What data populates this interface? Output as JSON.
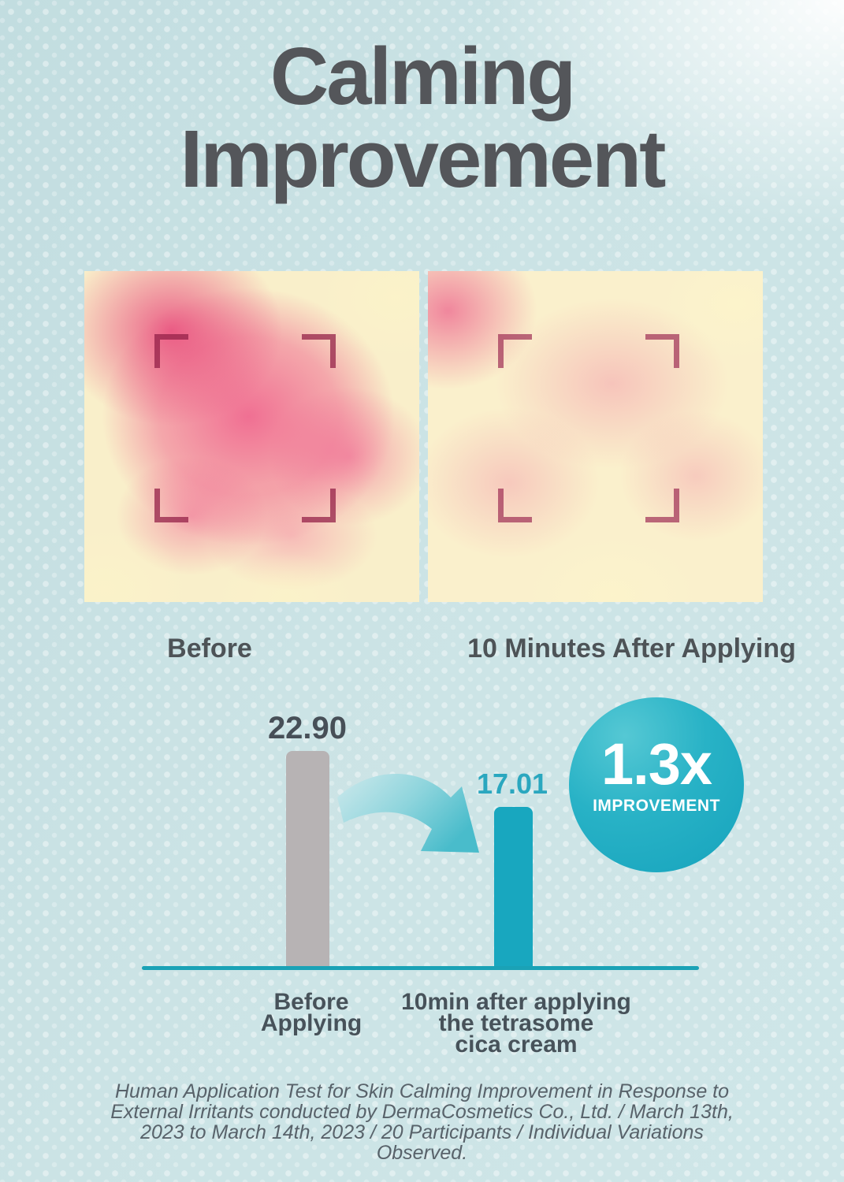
{
  "title": {
    "lines": [
      "Calming",
      "Improvement"
    ],
    "color": "#54565a"
  },
  "comparison": {
    "before_caption": "Before",
    "after_caption": "10 Minutes After Applying"
  },
  "chart_data": {
    "type": "bar",
    "categories": [
      "Before Applying",
      "10min after applying the tetrasome cica cream"
    ],
    "values": [
      22.9,
      17.01
    ],
    "value_labels": [
      "22.90",
      "17.01"
    ],
    "series_colors": [
      "#b7b3b4",
      "#18a7bf"
    ],
    "baseline_color": "#1aa2b6",
    "ylim": [
      0,
      25
    ],
    "grid": false,
    "legend": null,
    "annotation_badge": "1.3x IMPROVEMENT"
  },
  "badge": {
    "value": "1.3x",
    "label": "IMPROVEMENT",
    "color": "#28b2c6",
    "text_color": "#ffffff"
  },
  "axis_labels": {
    "before": {
      "lines": [
        "Before",
        "Applying"
      ]
    },
    "after": {
      "lines": [
        "10min after applying",
        "the tetrasome",
        "cica cream"
      ]
    }
  },
  "footnote": {
    "lines": [
      "Human Application Test for Skin Calming Improvement in Response to",
      "External Irritants conducted by DermaCosmetics Co., Ltd. / March 13th,",
      "2023 to March 14th, 2023 / 20 Participants / Individual Variations",
      "Observed."
    ]
  }
}
